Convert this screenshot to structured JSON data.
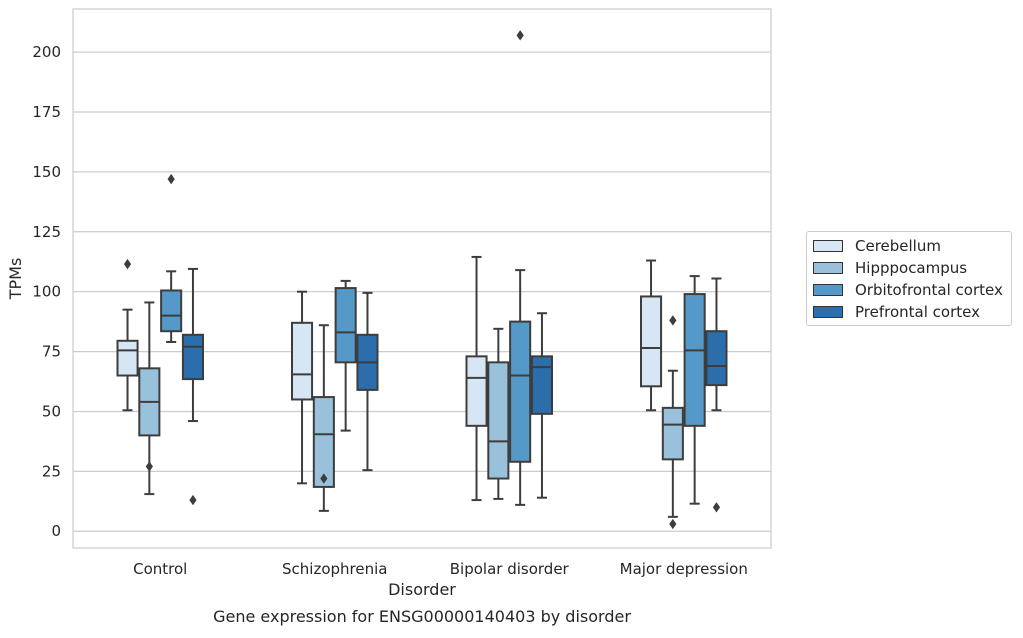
{
  "chart_data": {
    "type": "box",
    "title": "",
    "caption": "Gene expression for ENSG00000140403 by disorder",
    "xlabel": "Disorder",
    "ylabel": "TPMs",
    "ylim": [
      -7,
      218
    ],
    "yticks": [
      0,
      25,
      50,
      75,
      100,
      125,
      150,
      175,
      200
    ],
    "grid": true,
    "legend_position": "right",
    "categories": [
      "Control",
      "Schizophrenia",
      "Bipolar disorder",
      "Major depression"
    ],
    "series": [
      {
        "name": "Cerebellum",
        "color": "#d7e6f4",
        "boxes": [
          {
            "whislo": 50.5,
            "q1": 65,
            "median": 75.5,
            "q3": 79.5,
            "whishi": 92.5,
            "fliers": [
              111.5
            ]
          },
          {
            "whislo": 20,
            "q1": 55,
            "median": 65.5,
            "q3": 87,
            "whishi": 100,
            "fliers": []
          },
          {
            "whislo": 13,
            "q1": 44,
            "median": 64,
            "q3": 73,
            "whishi": 114.5,
            "fliers": []
          },
          {
            "whislo": 50.5,
            "q1": 60.5,
            "median": 76.5,
            "q3": 98,
            "whishi": 113,
            "fliers": []
          }
        ]
      },
      {
        "name": "Hipppocampus",
        "color": "#9ac1dc",
        "boxes": [
          {
            "whislo": 15.5,
            "q1": 40,
            "median": 54,
            "q3": 68,
            "whishi": 95.5,
            "fliers": [
              27
            ]
          },
          {
            "whislo": 8.5,
            "q1": 18.5,
            "median": 40.5,
            "q3": 56,
            "whishi": 86,
            "fliers": [
              22
            ]
          },
          {
            "whislo": 13.5,
            "q1": 22,
            "median": 37.5,
            "q3": 70.5,
            "whishi": 84.5,
            "fliers": []
          },
          {
            "whislo": 6,
            "q1": 30,
            "median": 44.5,
            "q3": 51.5,
            "whishi": 67,
            "fliers": [
              3,
              88
            ]
          }
        ]
      },
      {
        "name": "Orbitofrontal cortex",
        "color": "#5599c8",
        "boxes": [
          {
            "whislo": 79,
            "q1": 83.5,
            "median": 90,
            "q3": 100.5,
            "whishi": 108.5,
            "fliers": [
              147
            ]
          },
          {
            "whislo": 42,
            "q1": 70.5,
            "median": 83,
            "q3": 101.5,
            "whishi": 104.5,
            "fliers": []
          },
          {
            "whislo": 11,
            "q1": 29,
            "median": 65,
            "q3": 87.5,
            "whishi": 109,
            "fliers": [
              207
            ]
          },
          {
            "whislo": 11.5,
            "q1": 44,
            "median": 75.5,
            "q3": 99,
            "whishi": 106.5,
            "fliers": []
          }
        ]
      },
      {
        "name": "Prefrontal cortex",
        "color": "#2b6eab",
        "boxes": [
          {
            "whislo": 46,
            "q1": 63.5,
            "median": 77,
            "q3": 82,
            "whishi": 109.5,
            "fliers": [
              13
            ]
          },
          {
            "whislo": 25.5,
            "q1": 59,
            "median": 70.5,
            "q3": 82,
            "whishi": 99.5,
            "fliers": []
          },
          {
            "whislo": 14,
            "q1": 49,
            "median": 68.5,
            "q3": 73,
            "whishi": 91,
            "fliers": []
          },
          {
            "whislo": 50.5,
            "q1": 61,
            "median": 69,
            "q3": 83.5,
            "whishi": 105.5,
            "fliers": [
              10
            ]
          }
        ]
      }
    ]
  }
}
